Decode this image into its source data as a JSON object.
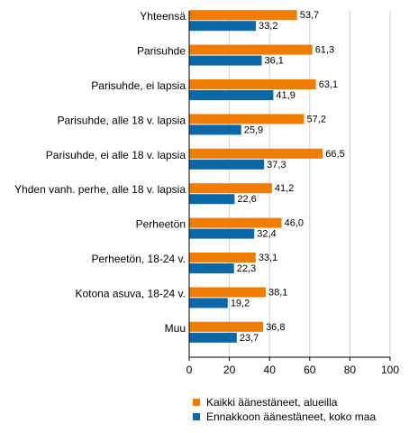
{
  "chart_data": {
    "type": "bar",
    "orientation": "horizontal",
    "categories": [
      "Yhteensä",
      "Parisuhde",
      "Parisuhde, ei lapsia",
      "Parisuhde, alle 18 v. lapsia",
      "Parisuhde, ei alle 18 v. lapsia",
      "Yhden vanh. perhe, alle 18 v. lapsia",
      "Perheetön",
      "Perheetön, 18-24 v.",
      "Kotona asuva, 18-24 v.",
      "Muu"
    ],
    "series": [
      {
        "name": "Kaikki äänestäneet, alueilla",
        "color": "#f07c00",
        "values": [
          53.7,
          61.3,
          63.1,
          57.2,
          66.5,
          41.2,
          46.0,
          33.1,
          38.1,
          36.8
        ],
        "labels": [
          "53,7",
          "61,3",
          "63,1",
          "57,2",
          "66,5",
          "41,2",
          "46,0",
          "33,1",
          "38,1",
          "36,8"
        ]
      },
      {
        "name": "Ennakkoon äänestäneet, koko maa",
        "color": "#0a67a8",
        "values": [
          33.2,
          36.1,
          41.9,
          25.9,
          37.3,
          22.6,
          32.4,
          22.3,
          19.2,
          23.7
        ],
        "labels": [
          "33,2",
          "36,1",
          "41,9",
          "25,9",
          "37,3",
          "22,6",
          "32,4",
          "22,3",
          "19,2",
          "23,7"
        ]
      }
    ],
    "xlim": [
      0,
      100
    ],
    "xticks": [
      0,
      20,
      40,
      60,
      80,
      100
    ],
    "grid": true,
    "legend_position": "bottom",
    "title": "",
    "xlabel": "",
    "ylabel": ""
  }
}
